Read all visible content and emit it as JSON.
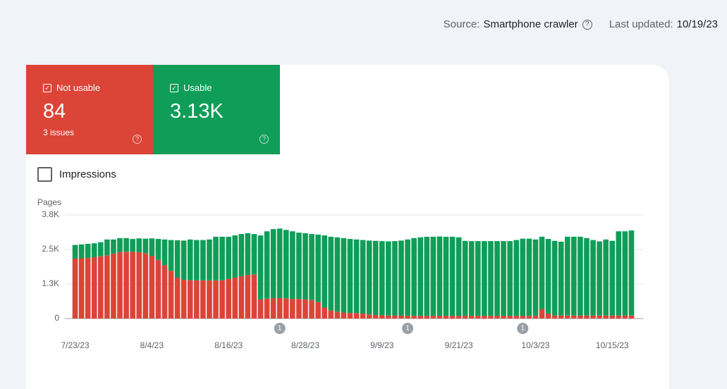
{
  "header": {
    "source_label": "Source:",
    "source": "Smartphone crawler",
    "updated_label": "Last updated:",
    "updated": "10/19/23"
  },
  "cards": [
    {
      "value": 84,
      "subtitle": "3 issues"
    },
    {
      "value": "3.13K"
    }
  ],
  "impressions_label": "Impressions",
  "chart_data": {
    "type": "bar",
    "stacked": true,
    "ylabel": "Pages",
    "categories": [
      "7/23/23",
      null,
      null,
      null,
      null,
      null,
      null,
      null,
      null,
      null,
      null,
      null,
      "8/4/23",
      null,
      null,
      null,
      null,
      null,
      null,
      null,
      null,
      null,
      null,
      null,
      "8/16/23",
      null,
      null,
      null,
      null,
      null,
      null,
      null,
      null,
      null,
      null,
      null,
      "8/28/23",
      null,
      null,
      null,
      null,
      null,
      null,
      null,
      null,
      null,
      null,
      null,
      "9/9/23",
      null,
      null,
      null,
      null,
      null,
      null,
      null,
      null,
      null,
      null,
      null,
      "9/21/23",
      null,
      null,
      null,
      null,
      null,
      null,
      null,
      null,
      null,
      null,
      null,
      "10/3/23",
      null,
      null,
      null,
      null,
      null,
      null,
      null,
      null,
      null,
      null,
      null,
      "10/15/23",
      null,
      null,
      null
    ],
    "series": [
      {
        "name": "Not usable",
        "color": "#db4437",
        "values": [
          2200,
          2210,
          2220,
          2250,
          2280,
          2320,
          2380,
          2440,
          2450,
          2450,
          2440,
          2400,
          2300,
          2150,
          1950,
          1750,
          1500,
          1420,
          1400,
          1400,
          1400,
          1400,
          1400,
          1400,
          1450,
          1500,
          1550,
          1600,
          1620,
          700,
          730,
          750,
          750,
          740,
          720,
          720,
          700,
          680,
          600,
          400,
          300,
          250,
          220,
          200,
          200,
          180,
          150,
          130,
          120,
          110,
          110,
          105,
          100,
          100,
          100,
          100,
          100,
          100,
          100,
          100,
          100,
          100,
          100,
          100,
          100,
          100,
          100,
          100,
          100,
          100,
          100,
          100,
          100,
          350,
          180,
          110,
          110,
          110,
          110,
          110,
          110,
          110,
          110,
          110,
          110,
          110,
          110,
          110
        ]
      },
      {
        "name": "Usable",
        "color": "#0f9d58",
        "values": [
          500,
          510,
          520,
          510,
          520,
          580,
          520,
          510,
          500,
          470,
          500,
          530,
          640,
          770,
          950,
          1130,
          1370,
          1440,
          1500,
          1480,
          1480,
          1500,
          1600,
          1600,
          1550,
          1550,
          1550,
          1530,
          1480,
          2350,
          2470,
          2530,
          2550,
          2510,
          2480,
          2430,
          2430,
          2420,
          2480,
          2650,
          2700,
          2730,
          2730,
          2720,
          2700,
          2700,
          2710,
          2720,
          2720,
          2720,
          2730,
          2755,
          2800,
          2850,
          2880,
          2900,
          2900,
          2910,
          2900,
          2900,
          2880,
          2750,
          2740,
          2740,
          2740,
          2740,
          2740,
          2740,
          2740,
          2780,
          2830,
          2830,
          2800,
          2650,
          2740,
          2740,
          2710,
          2890,
          2890,
          2890,
          2840,
          2770,
          2720,
          2790,
          2740,
          3090,
          3090,
          3120
        ]
      }
    ],
    "ylim": [
      0,
      3800
    ],
    "yticks": [
      0,
      {
        "value": 1267,
        "label": "1.3K"
      },
      {
        "value": 2533,
        "label": "2.5K"
      },
      {
        "value": 3800,
        "label": "3.8K"
      }
    ],
    "grid": true,
    "annotations": [
      {
        "label": "1",
        "at": 32
      },
      {
        "label": "1",
        "at": 52
      },
      {
        "label": "1",
        "at": 70
      }
    ]
  }
}
